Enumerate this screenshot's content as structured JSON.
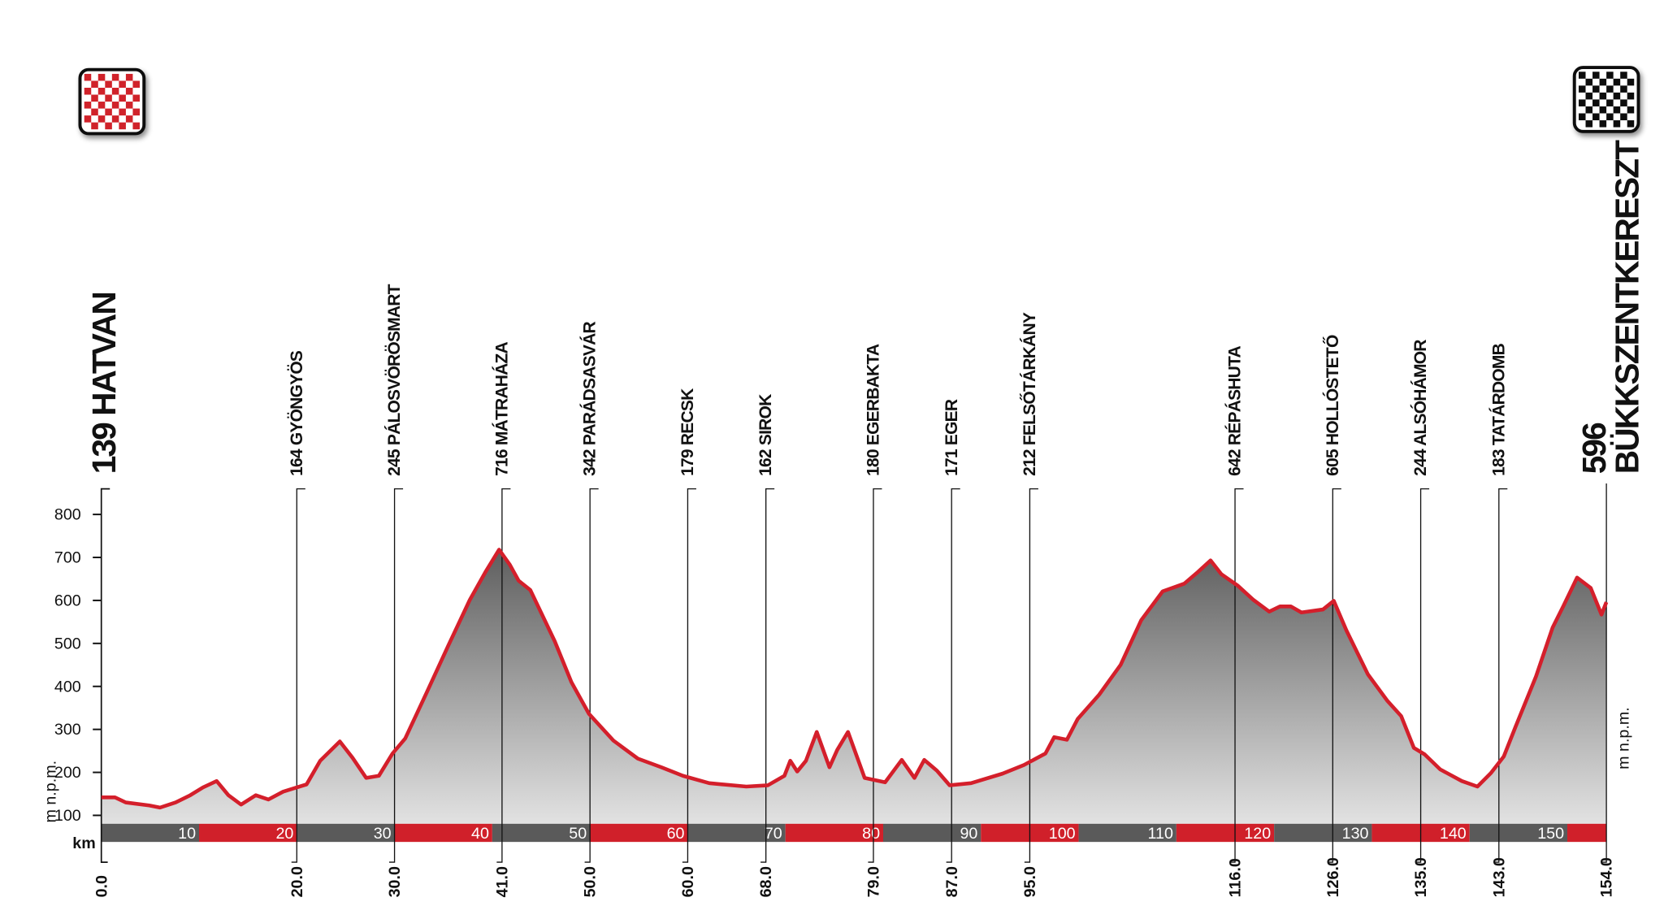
{
  "chart_data": {
    "type": "area",
    "ylabel": "m n.p.m.",
    "xlabel": "km",
    "ylim": [
      60,
      860
    ],
    "xlim": [
      0,
      154
    ],
    "y_ticks": [
      100,
      200,
      300,
      400,
      500,
      600,
      700,
      800
    ],
    "km_bar_labels": [
      10,
      20,
      30,
      40,
      50,
      60,
      70,
      80,
      90,
      100,
      110,
      120,
      130,
      140,
      150
    ],
    "colors": {
      "line": "#d41f2b",
      "fill_top": "#5e5e5e",
      "fill_bottom": "#e2e2e2",
      "bar_dark": "#5a5a5a",
      "bar_red": "#d0202a"
    },
    "start": {
      "km": "0.0",
      "label": "139 HATVAN",
      "flag": "red-checkered-flag"
    },
    "finish": {
      "km": "154.0",
      "elevation": "596",
      "name": "BÜKKSZENTKERESZT",
      "flag": "black-checkered-flag"
    },
    "waypoints": [
      {
        "km": "20.0",
        "label": "164 GYÖNGYÖS"
      },
      {
        "km": "30.0",
        "label": "245 PÁLOSVÖRÖSMART"
      },
      {
        "km": "41.0",
        "label": "716 MÁTRAHÁZA"
      },
      {
        "km": "50.0",
        "label": "342 PARÁDSASVÁR"
      },
      {
        "km": "60.0",
        "label": "179 RECSK"
      },
      {
        "km": "68.0",
        "label": "162 SIROK"
      },
      {
        "km": "79.0",
        "label": "180 EGERBAKTA"
      },
      {
        "km": "87.0",
        "label": "171 EGER"
      },
      {
        "km": "95.0",
        "label": "212 FELSŐTÁRKÁNY"
      },
      {
        "km": "116.0",
        "label": "642 RÉPÁSHUTA"
      },
      {
        "km": "126.0",
        "label": "605 HOLLÓSTETŐ"
      },
      {
        "km": "135.0",
        "label": "244 ALSÓHÁMOR"
      },
      {
        "km": "143.0",
        "label": "183 TATÁRDOMB"
      }
    ],
    "profile": [
      [
        0,
        142
      ],
      [
        1.4,
        142
      ],
      [
        2.5,
        130
      ],
      [
        4.9,
        123
      ],
      [
        6,
        118
      ],
      [
        7.6,
        130
      ],
      [
        9.1,
        147
      ],
      [
        10.4,
        165
      ],
      [
        11.8,
        180
      ],
      [
        13,
        147
      ],
      [
        14.3,
        125
      ],
      [
        15.8,
        147
      ],
      [
        17.1,
        137
      ],
      [
        18.6,
        155
      ],
      [
        20,
        165
      ],
      [
        21,
        172
      ],
      [
        22.4,
        227
      ],
      [
        24.4,
        272
      ],
      [
        25.7,
        234
      ],
      [
        27.1,
        187
      ],
      [
        28.4,
        192
      ],
      [
        29.8,
        244
      ],
      [
        31.1,
        279
      ],
      [
        33.3,
        386
      ],
      [
        35.5,
        495
      ],
      [
        37.7,
        601
      ],
      [
        39.3,
        666
      ],
      [
        40.7,
        718
      ],
      [
        41.8,
        683
      ],
      [
        42.7,
        646
      ],
      [
        43.9,
        624
      ],
      [
        46.4,
        505
      ],
      [
        48.1,
        410
      ],
      [
        49.9,
        336
      ],
      [
        52.4,
        274
      ],
      [
        54.9,
        232
      ],
      [
        57.3,
        212
      ],
      [
        59.5,
        192
      ],
      [
        62.2,
        175
      ],
      [
        66,
        167
      ],
      [
        68.2,
        170
      ],
      [
        69.9,
        192
      ],
      [
        70.5,
        227
      ],
      [
        71.2,
        202
      ],
      [
        72.1,
        227
      ],
      [
        73.2,
        294
      ],
      [
        74.5,
        212
      ],
      [
        75.3,
        252
      ],
      [
        76.4,
        294
      ],
      [
        78.1,
        187
      ],
      [
        80.2,
        177
      ],
      [
        81.9,
        229
      ],
      [
        83.2,
        187
      ],
      [
        84.2,
        229
      ],
      [
        85.5,
        204
      ],
      [
        86.8,
        170
      ],
      [
        89,
        175
      ],
      [
        92.2,
        197
      ],
      [
        94.4,
        217
      ],
      [
        96.6,
        244
      ],
      [
        97.5,
        282
      ],
      [
        98.8,
        276
      ],
      [
        99.9,
        324
      ],
      [
        102.1,
        381
      ],
      [
        104.3,
        450
      ],
      [
        106.4,
        554
      ],
      [
        108.6,
        621
      ],
      [
        110.8,
        639
      ],
      [
        112.2,
        666
      ],
      [
        113.5,
        693
      ],
      [
        114.6,
        661
      ],
      [
        116.3,
        634
      ],
      [
        117.9,
        601
      ],
      [
        119.5,
        574
      ],
      [
        120.6,
        586
      ],
      [
        121.7,
        586
      ],
      [
        122.8,
        572
      ],
      [
        125,
        579
      ],
      [
        126.1,
        599
      ],
      [
        127.4,
        530
      ],
      [
        129.6,
        428
      ],
      [
        131.6,
        366
      ],
      [
        133,
        331
      ],
      [
        134.3,
        257
      ],
      [
        135.4,
        242
      ],
      [
        137,
        207
      ],
      [
        139.2,
        180
      ],
      [
        140.8,
        167
      ],
      [
        142.2,
        199
      ],
      [
        143.5,
        237
      ],
      [
        144.7,
        306
      ],
      [
        146.8,
        423
      ],
      [
        148.5,
        537
      ],
      [
        149.6,
        587
      ],
      [
        151,
        653
      ],
      [
        152.4,
        629
      ],
      [
        153.5,
        567
      ],
      [
        154,
        596
      ]
    ]
  }
}
